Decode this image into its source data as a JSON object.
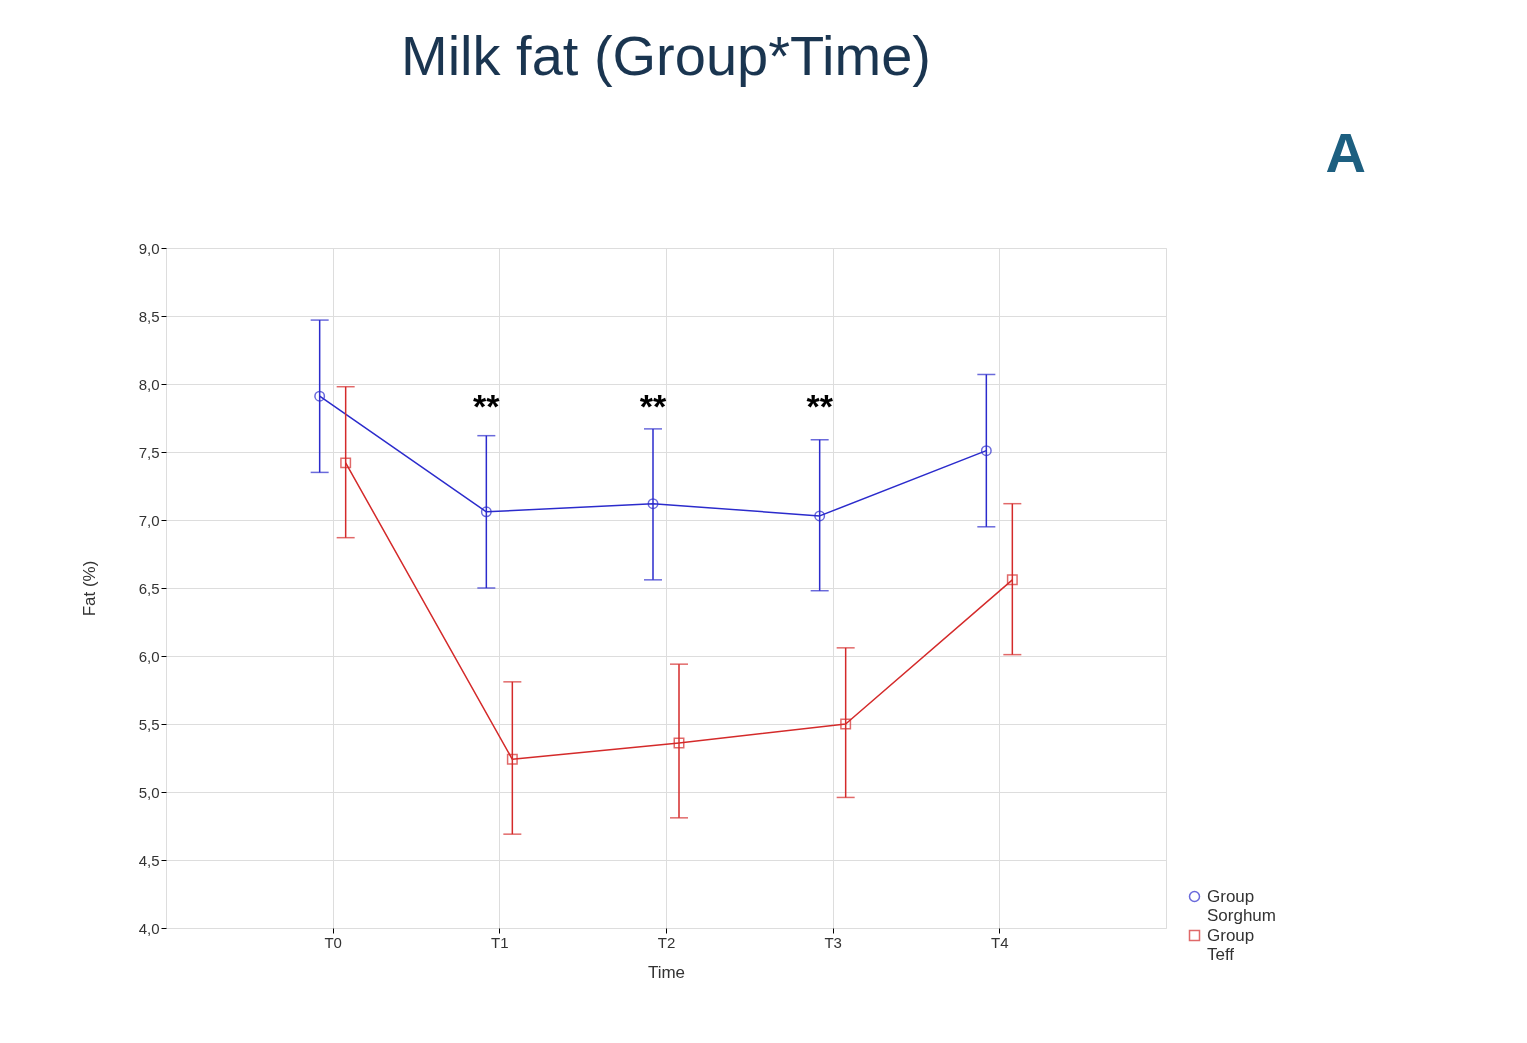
{
  "chart_data": {
    "type": "line",
    "title": "Milk fat (Group*Time)",
    "xlabel": "Time",
    "ylabel": "Fat (%)",
    "categories": [
      "T0",
      "T1",
      "T2",
      "T3",
      "T4"
    ],
    "series": [
      {
        "name": "Group Sorghum",
        "color": "#2b2bcc",
        "marker": "circle",
        "values": [
          7.91,
          7.06,
          7.12,
          7.03,
          7.51
        ],
        "errors": [
          [
            7.35,
            8.47
          ],
          [
            6.5,
            7.62
          ],
          [
            6.56,
            7.67
          ],
          [
            6.48,
            7.59
          ],
          [
            6.95,
            8.07
          ]
        ]
      },
      {
        "name": "Group Teff",
        "color": "#d42a2a",
        "marker": "square",
        "values": [
          7.42,
          5.24,
          5.36,
          5.5,
          6.56
        ],
        "errors": [
          [
            6.87,
            7.98
          ],
          [
            4.69,
            5.81
          ],
          [
            4.81,
            5.94
          ],
          [
            4.96,
            6.06
          ],
          [
            6.01,
            7.12
          ]
        ]
      }
    ],
    "ylim": [
      4.0,
      9.0
    ],
    "yticks": [
      {
        "value": 4.0,
        "label": "4,0"
      },
      {
        "value": 4.5,
        "label": "4,5"
      },
      {
        "value": 5.0,
        "label": "5,0"
      },
      {
        "value": 5.5,
        "label": "5,5"
      },
      {
        "value": 6.0,
        "label": "6,0"
      },
      {
        "value": 6.5,
        "label": "6,5"
      },
      {
        "value": 7.0,
        "label": "7,0"
      },
      {
        "value": 7.5,
        "label": "7,5"
      },
      {
        "value": 8.0,
        "label": "8,0"
      },
      {
        "value": 8.5,
        "label": "8,5"
      },
      {
        "value": 9.0,
        "label": "9,0"
      }
    ],
    "grid": true,
    "legend": "bottom right",
    "annotations": [
      "**",
      "**",
      "**",
      "A"
    ]
  }
}
